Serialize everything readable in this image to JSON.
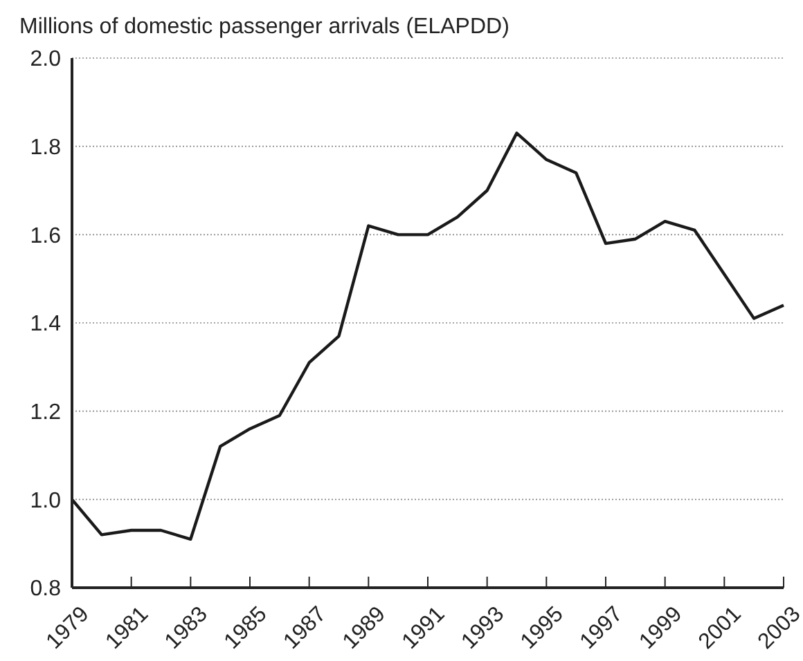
{
  "chart_data": {
    "type": "line",
    "title": "Millions of domestic passenger arrivals (ELAPDD)",
    "x": [
      1979,
      1980,
      1981,
      1982,
      1983,
      1984,
      1985,
      1986,
      1987,
      1988,
      1989,
      1990,
      1991,
      1992,
      1993,
      1994,
      1995,
      1996,
      1997,
      1998,
      1999,
      2000,
      2001,
      2002,
      2003
    ],
    "series": [
      {
        "color": "#1a1a1a",
        "values": [
          1.0,
          0.92,
          0.93,
          0.93,
          0.91,
          1.12,
          1.16,
          1.19,
          1.31,
          1.37,
          1.62,
          1.6,
          1.6,
          1.64,
          1.7,
          1.83,
          1.77,
          1.74,
          1.58,
          1.59,
          1.63,
          1.61,
          1.51,
          1.41,
          1.44
        ]
      }
    ],
    "xlim": [
      1979,
      2003
    ],
    "xticks": [
      1979,
      1981,
      1983,
      1985,
      1987,
      1989,
      1991,
      1993,
      1995,
      1997,
      1999,
      2001,
      2003
    ],
    "ylim": [
      0.8,
      2.0
    ],
    "yticks": [
      {
        "value": 0.8,
        "label": "0.8"
      },
      {
        "value": 1.0,
        "label": "1.0"
      },
      {
        "value": 1.2,
        "label": "1.2"
      },
      {
        "value": 1.4,
        "label": "1.4"
      },
      {
        "value": 1.6,
        "label": "1.6"
      },
      {
        "value": 1.8,
        "label": "1.8"
      },
      {
        "value": 2.0,
        "label": "2.0"
      }
    ],
    "grid": "y",
    "line_style": "solid",
    "marker": "none"
  }
}
